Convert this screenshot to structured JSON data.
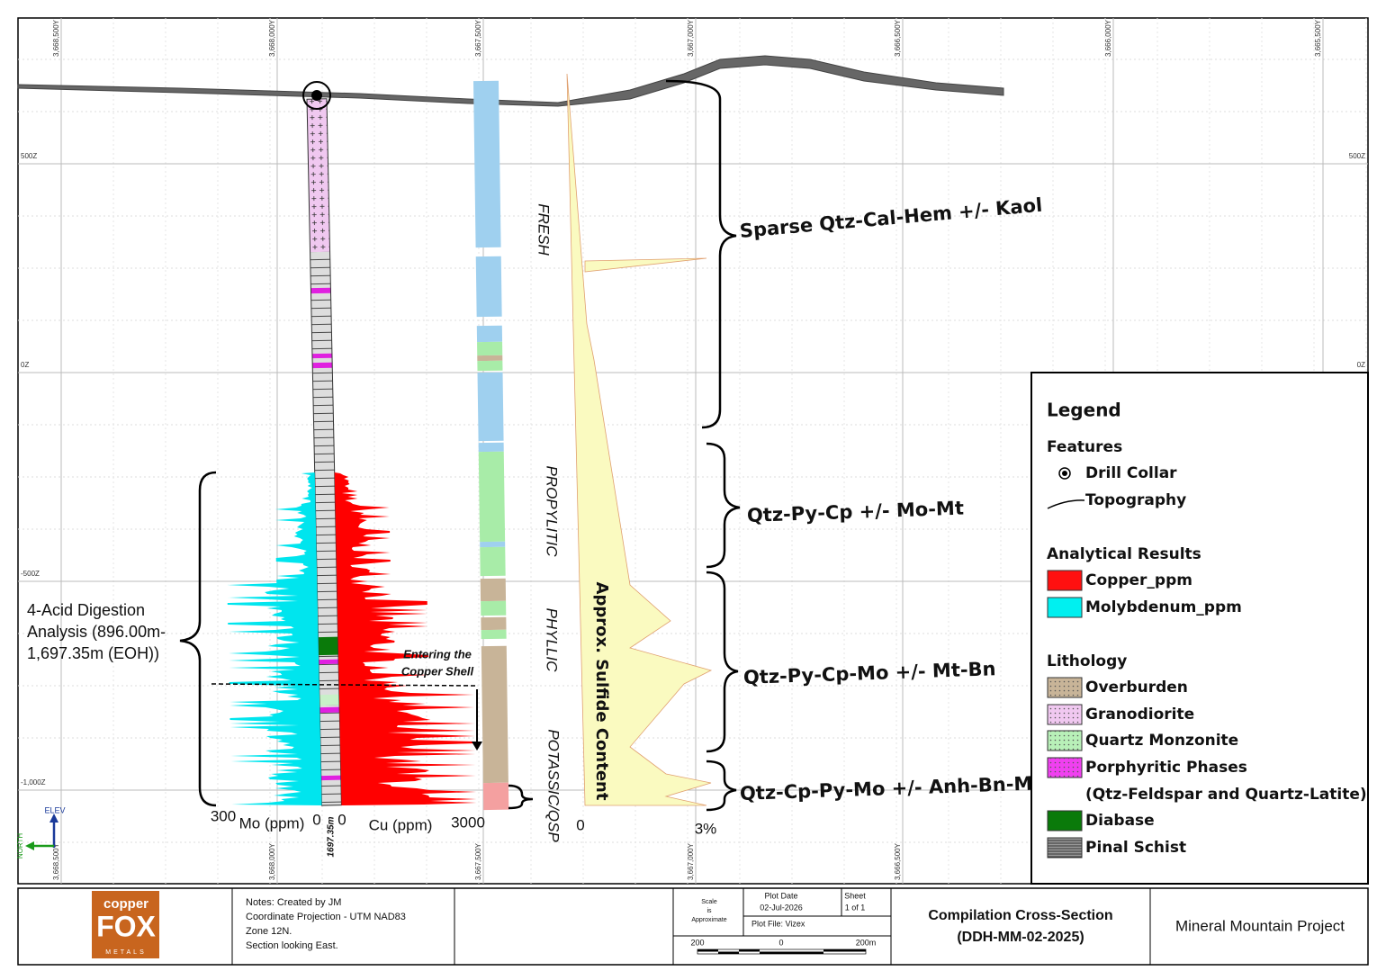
{
  "grid": {
    "top_labels": [
      "3,668,500Y",
      "3,668,000Y",
      "3,667,500Y",
      "3,667,000Y",
      "3,666,500Y",
      "3,666,000Y",
      "3,665,500Y"
    ],
    "bottom_labels": [
      "3,668,500Y",
      "3,668,000Y",
      "3,667,500Y",
      "3,667,000Y",
      "3,666,500Y"
    ],
    "left_labels": [
      "500Z",
      "0Z",
      "-500Z",
      "-1,000Z"
    ],
    "right_labels": [
      "500Z",
      "0Z"
    ]
  },
  "zones": [
    "FRESH",
    "PROPYLITIC",
    "PHYLLIC",
    "POTASSIC/QSP"
  ],
  "sulfide": {
    "label": "Approx. Sulfide Content",
    "min": "0",
    "max": "3%"
  },
  "intervals": [
    "Sparse Qtz-Cal-Hem +/- Kaol",
    "Qtz-Py-Cp +/- Mo-Mt",
    "Qtz-Py-Cp-Mo +/- Mt-Bn",
    "Qtz-Cp-Py-Mo +/- Anh-Bn-Mt"
  ],
  "analysis": {
    "label_lines": [
      "4-Acid Digestion",
      "Analysis (896.00m-",
      "1,697.35m (EOH))"
    ],
    "mo_max": "300",
    "mo_label": "Mo (ppm)",
    "mo_zero": "0",
    "cu_zero": "0",
    "cu_label": "Cu (ppm)",
    "cu_max": "3000",
    "depth": "1697.35m",
    "shell_lines": [
      "Entering the",
      "Copper Shell"
    ]
  },
  "north": {
    "elev": "ELEV",
    "north": "NORTH"
  },
  "legend": {
    "title": "Legend",
    "features_title": "Features",
    "features": [
      "Drill Collar",
      "Topography"
    ],
    "analytical_title": "Analytical Results",
    "analytical": [
      "Copper_ppm",
      "Molybdenum_ppm"
    ],
    "lithology_title": "Lithology",
    "lithology": [
      "Overburden",
      "Granodiorite",
      "Quartz Monzonite",
      "Porphyritic Phases",
      "(Qtz-Feldspar and Quartz-Latite)",
      "Diabase",
      "Pinal Schist"
    ]
  },
  "title_block": {
    "logo": [
      "copper",
      "FOX",
      "METALS"
    ],
    "notes": [
      "Notes: Created by JM",
      "Coordinate Projection - UTM NAD83",
      "Zone 12N.",
      "Section looking East."
    ],
    "scale_note": [
      "Scale",
      "is",
      "Approximate"
    ],
    "plot_date_label": "Plot Date",
    "plot_date": "02-Jul-2026",
    "sheet_label": "Sheet",
    "sheet": "1 of 1",
    "plot_file": "Plot File: Vizex",
    "scale_bar": [
      "200",
      "0",
      "200m"
    ],
    "title_lines": [
      "Compilation Cross-Section",
      "(DDH-MM-02-2025)"
    ],
    "project": "Mineral Mountain Project"
  }
}
